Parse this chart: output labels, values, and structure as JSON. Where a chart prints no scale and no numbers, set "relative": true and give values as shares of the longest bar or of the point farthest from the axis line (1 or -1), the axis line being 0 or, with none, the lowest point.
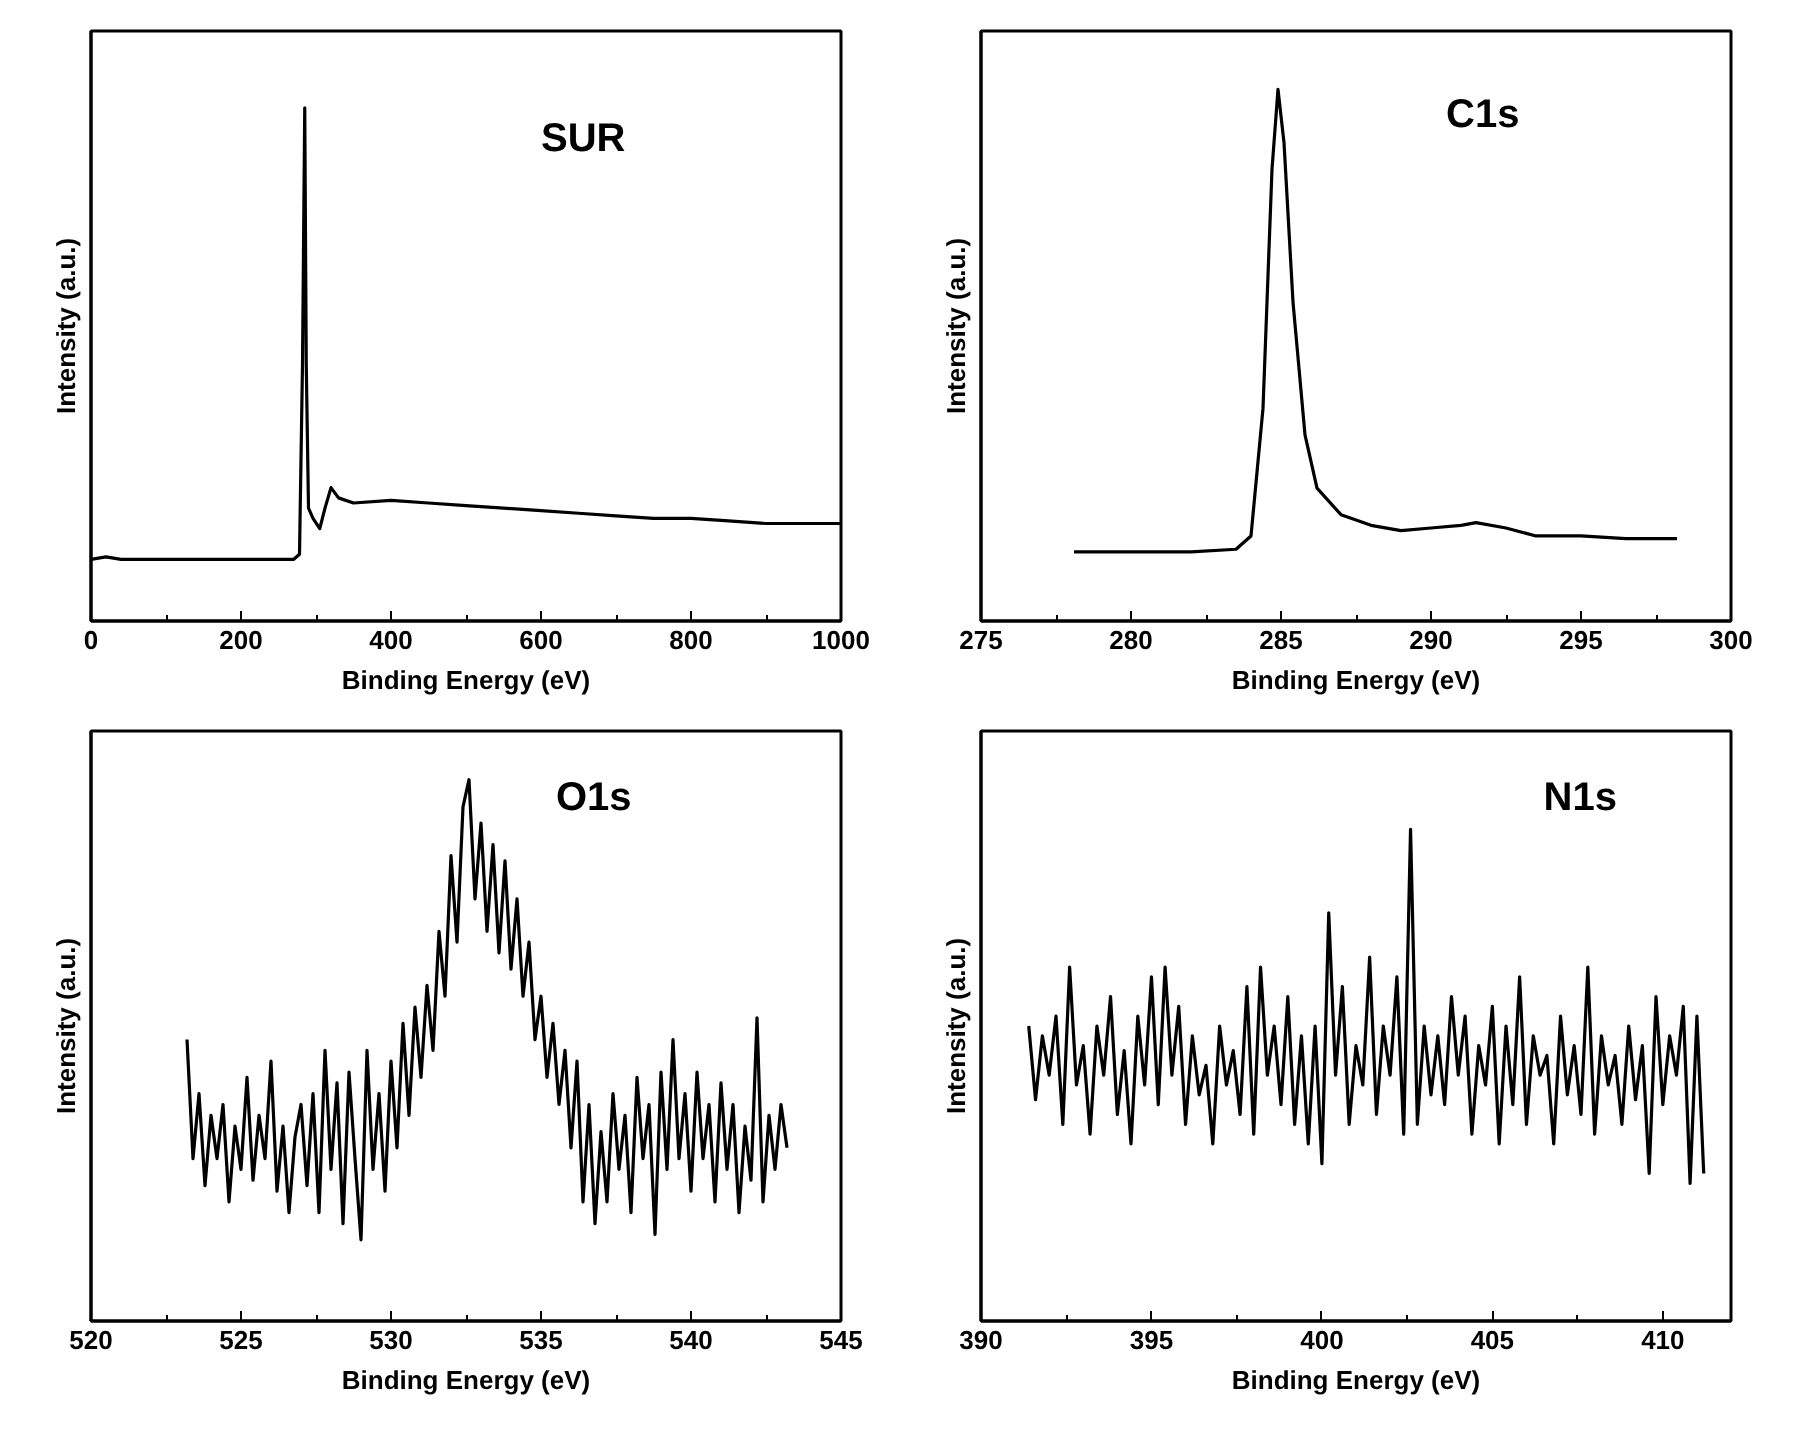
{
  "chart_data": [
    {
      "type": "line",
      "relative": true,
      "xlabel": "Binding Energy (eV)",
      "ylabel": "Intensity (a.u.)",
      "annotations": [
        "SUR"
      ],
      "tick_labels": "x",
      "grid": false,
      "marker": "none",
      "line_style": "solid",
      "xlim": [
        0,
        1000
      ],
      "xticks": [
        0,
        {
          "value": 100,
          "label": null
        },
        200,
        {
          "value": 300,
          "label": null
        },
        400,
        {
          "value": 500,
          "label": null
        },
        600,
        {
          "value": 700,
          "label": null
        },
        800,
        {
          "value": 900,
          "label": null
        },
        1000
      ],
      "series": [
        {
          "color": "#000000",
          "x": [
            0,
            20,
            40,
            100,
            200,
            270,
            278,
            282,
            285,
            287,
            290,
            296,
            305,
            312,
            320,
            330,
            350,
            400,
            450,
            500,
            550,
            600,
            650,
            700,
            750,
            800,
            850,
            900,
            950,
            1000
          ],
          "values": [
            0.12,
            0.125,
            0.12,
            0.12,
            0.12,
            0.12,
            0.13,
            0.5,
            1.0,
            0.5,
            0.22,
            0.2,
            0.18,
            0.22,
            0.26,
            0.24,
            0.23,
            0.235,
            0.23,
            0.225,
            0.22,
            0.215,
            0.21,
            0.205,
            0.2,
            0.2,
            0.195,
            0.19,
            0.19,
            0.19
          ]
        }
      ]
    },
    {
      "type": "line",
      "relative": true,
      "xlabel": "Binding Energy (eV)",
      "ylabel": "Intensity (a.u.)",
      "annotations": [
        "C1s"
      ],
      "tick_labels": "x",
      "grid": false,
      "marker": "none",
      "line_style": "solid",
      "xlim": [
        275,
        300
      ],
      "xticks": [
        275,
        {
          "value": 277.5,
          "label": null
        },
        280,
        {
          "value": 282.5,
          "label": null
        },
        285,
        {
          "value": 287.5,
          "label": null
        },
        290,
        {
          "value": 292.5,
          "label": null
        },
        295,
        {
          "value": 297.5,
          "label": null
        },
        300
      ],
      "series": [
        {
          "color": "#000000",
          "x": [
            278.1,
            280,
            282,
            283.5,
            284,
            284.4,
            284.7,
            284.9,
            285.1,
            285.4,
            285.8,
            286.2,
            287,
            288,
            289,
            290,
            291,
            291.5,
            292.5,
            293.5,
            295,
            296.5,
            298.2
          ],
          "values": [
            0.13,
            0.13,
            0.13,
            0.135,
            0.16,
            0.4,
            0.85,
            1.0,
            0.9,
            0.6,
            0.35,
            0.25,
            0.2,
            0.18,
            0.17,
            0.175,
            0.18,
            0.185,
            0.175,
            0.16,
            0.16,
            0.155,
            0.155
          ]
        }
      ]
    },
    {
      "type": "line",
      "relative": true,
      "xlabel": "Binding Energy (eV)",
      "ylabel": "Intensity (a.u.)",
      "annotations": [
        "O1s"
      ],
      "tick_labels": "x",
      "grid": false,
      "marker": "none",
      "line_style": "solid",
      "xlim": [
        520,
        545
      ],
      "xticks": [
        520,
        {
          "value": 522.5,
          "label": null
        },
        525,
        {
          "value": 527.5,
          "label": null
        },
        530,
        {
          "value": 532.5,
          "label": null
        },
        535,
        {
          "value": 537.5,
          "label": null
        },
        540,
        {
          "value": 542.5,
          "label": null
        },
        545
      ],
      "series": [
        {
          "color": "#000000",
          "x": [
            523.2,
            523.4,
            523.6,
            523.8,
            524.0,
            524.2,
            524.4,
            524.6,
            524.8,
            525.0,
            525.2,
            525.4,
            525.6,
            525.8,
            526.0,
            526.2,
            526.4,
            526.6,
            526.8,
            527.0,
            527.2,
            527.4,
            527.6,
            527.8,
            528.0,
            528.2,
            528.4,
            528.6,
            528.8,
            529.0,
            529.2,
            529.4,
            529.6,
            529.8,
            530.0,
            530.2,
            530.4,
            530.6,
            530.8,
            531.0,
            531.2,
            531.4,
            531.6,
            531.8,
            532.0,
            532.2,
            532.4,
            532.6,
            532.8,
            533.0,
            533.2,
            533.4,
            533.6,
            533.8,
            534.0,
            534.2,
            534.4,
            534.6,
            534.8,
            535.0,
            535.2,
            535.4,
            535.6,
            535.8,
            536.0,
            536.2,
            536.4,
            536.6,
            536.8,
            537.0,
            537.2,
            537.4,
            537.6,
            537.8,
            538.0,
            538.2,
            538.4,
            538.6,
            538.8,
            539.0,
            539.2,
            539.4,
            539.6,
            539.8,
            540.0,
            540.2,
            540.4,
            540.6,
            540.8,
            541.0,
            541.2,
            541.4,
            541.6,
            541.8,
            542.0,
            542.2,
            542.4,
            542.6,
            542.8,
            543.0,
            543.2
          ],
          "values": [
            0.52,
            0.3,
            0.42,
            0.25,
            0.38,
            0.3,
            0.4,
            0.22,
            0.36,
            0.28,
            0.45,
            0.26,
            0.38,
            0.3,
            0.48,
            0.24,
            0.36,
            0.2,
            0.34,
            0.4,
            0.25,
            0.42,
            0.2,
            0.5,
            0.28,
            0.44,
            0.18,
            0.46,
            0.3,
            0.15,
            0.5,
            0.28,
            0.42,
            0.24,
            0.48,
            0.32,
            0.55,
            0.38,
            0.58,
            0.45,
            0.62,
            0.5,
            0.72,
            0.6,
            0.86,
            0.7,
            0.95,
            1.0,
            0.78,
            0.92,
            0.72,
            0.88,
            0.68,
            0.85,
            0.65,
            0.78,
            0.6,
            0.7,
            0.52,
            0.6,
            0.45,
            0.55,
            0.4,
            0.5,
            0.32,
            0.48,
            0.22,
            0.4,
            0.18,
            0.35,
            0.22,
            0.42,
            0.28,
            0.38,
            0.2,
            0.45,
            0.3,
            0.4,
            0.16,
            0.46,
            0.28,
            0.52,
            0.3,
            0.42,
            0.24,
            0.46,
            0.3,
            0.4,
            0.22,
            0.44,
            0.28,
            0.4,
            0.2,
            0.36,
            0.26,
            0.56,
            0.22,
            0.38,
            0.28,
            0.4,
            0.32
          ]
        }
      ]
    },
    {
      "type": "line",
      "relative": true,
      "xlabel": "Binding Energy (eV)",
      "ylabel": "Intensity (a.u.)",
      "annotations": [
        "N1s"
      ],
      "tick_labels": "x",
      "grid": false,
      "marker": "none",
      "line_style": "solid",
      "xlim": [
        390,
        412
      ],
      "xticks": [
        390,
        {
          "value": 392.5,
          "label": null
        },
        395,
        {
          "value": 397.5,
          "label": null
        },
        400,
        {
          "value": 402.5,
          "label": null
        },
        405,
        {
          "value": 407.5,
          "label": null
        },
        410
      ],
      "series": [
        {
          "color": "#000000",
          "x": [
            391.4,
            391.6,
            391.8,
            392.0,
            392.2,
            392.4,
            392.6,
            392.8,
            393.0,
            393.2,
            393.4,
            393.6,
            393.8,
            394.0,
            394.2,
            394.4,
            394.6,
            394.8,
            395.0,
            395.2,
            395.4,
            395.6,
            395.8,
            396.0,
            396.2,
            396.4,
            396.6,
            396.8,
            397.0,
            397.2,
            397.4,
            397.6,
            397.8,
            398.0,
            398.2,
            398.4,
            398.6,
            398.8,
            399.0,
            399.2,
            399.4,
            399.6,
            399.8,
            400.0,
            400.2,
            400.4,
            400.6,
            400.8,
            401.0,
            401.2,
            401.4,
            401.6,
            401.8,
            402.0,
            402.2,
            402.4,
            402.6,
            402.8,
            403.0,
            403.2,
            403.4,
            403.6,
            403.8,
            404.0,
            404.2,
            404.4,
            404.6,
            404.8,
            405.0,
            405.2,
            405.4,
            405.6,
            405.8,
            406.0,
            406.2,
            406.4,
            406.6,
            406.8,
            407.0,
            407.2,
            407.4,
            407.6,
            407.8,
            408.0,
            408.2,
            408.4,
            408.6,
            408.8,
            409.0,
            409.2,
            409.4,
            409.6,
            409.8,
            410.0,
            410.2,
            410.4,
            410.6,
            410.8,
            411.0,
            411.2
          ],
          "values": [
            0.6,
            0.45,
            0.58,
            0.5,
            0.62,
            0.4,
            0.72,
            0.48,
            0.56,
            0.38,
            0.6,
            0.5,
            0.66,
            0.42,
            0.55,
            0.36,
            0.62,
            0.48,
            0.7,
            0.44,
            0.72,
            0.5,
            0.64,
            0.4,
            0.58,
            0.46,
            0.52,
            0.36,
            0.6,
            0.48,
            0.55,
            0.42,
            0.68,
            0.38,
            0.72,
            0.5,
            0.6,
            0.44,
            0.66,
            0.4,
            0.58,
            0.36,
            0.6,
            0.32,
            0.83,
            0.5,
            0.68,
            0.4,
            0.56,
            0.48,
            0.74,
            0.42,
            0.6,
            0.5,
            0.7,
            0.38,
            1.0,
            0.4,
            0.6,
            0.46,
            0.58,
            0.44,
            0.66,
            0.5,
            0.62,
            0.38,
            0.56,
            0.48,
            0.64,
            0.36,
            0.6,
            0.44,
            0.7,
            0.4,
            0.58,
            0.5,
            0.54,
            0.36,
            0.62,
            0.46,
            0.56,
            0.42,
            0.72,
            0.38,
            0.58,
            0.48,
            0.54,
            0.4,
            0.6,
            0.45,
            0.56,
            0.3,
            0.66,
            0.44,
            0.58,
            0.5,
            0.64,
            0.28,
            0.62,
            0.3
          ]
        }
      ]
    }
  ]
}
